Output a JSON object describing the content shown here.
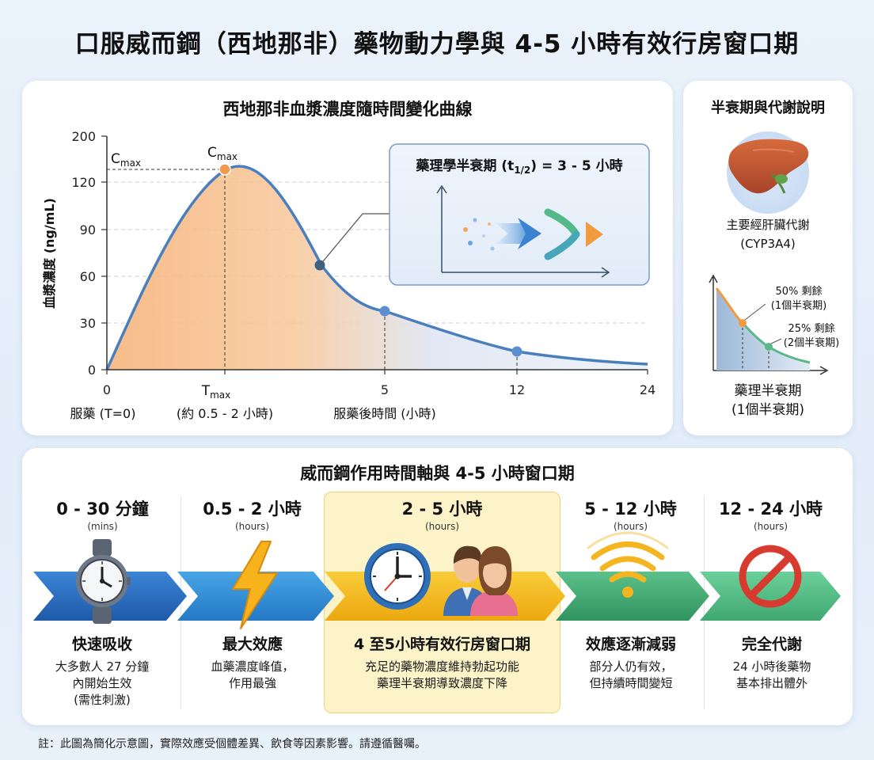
{
  "title": "口服威而鋼（西地那非）藥物動力學與 4-5 小時有效行房窗口期",
  "chart_card": {
    "title": "西地那非血漿濃度隨時間變化曲線",
    "inset_label": "藥理學半衰期 (t1/2) = 3 - 5 小時",
    "inset_label_main": "藥理學半衰期 (t",
    "inset_label_sub": "1/2",
    "inset_label_tail": ") = 3 - 5 小時",
    "cmax_left": "C",
    "cmax_left_sub": "max",
    "cmax_peak": "C",
    "cmax_peak_sub": "max",
    "tmax": "T",
    "tmax_sub": "max",
    "tmax_note": "(約 0.5 - 2 小時)",
    "dose_label": "服藥 (T=0)",
    "x_axis_label": "服藥後時間 (小時)"
  },
  "chart_data": {
    "type": "area",
    "ylabel": "血漿濃度 (ng/mL)",
    "xlabel": "服藥後時間 (小時)",
    "y_ticks": [
      0,
      30,
      60,
      90,
      120,
      200
    ],
    "x_ticks": [
      "0",
      "Tmax",
      "5",
      "12",
      "24"
    ],
    "ylim": [
      0,
      200
    ],
    "grid": "dashed horizontal",
    "peak": {
      "x_label": "Tmax",
      "y": 128,
      "label": "Cmax"
    },
    "markers": [
      {
        "x": "between Tmax and 5",
        "y": 67
      },
      {
        "x": 5,
        "y": 38
      },
      {
        "x": 12,
        "y": 12
      }
    ],
    "curve_end_y": 4,
    "colors": {
      "curve": "#4a7fbf",
      "fill_peak": "#f6a96b",
      "fill_tail": "#c8d8ee",
      "peak_dot": "#f39a4a",
      "dot": "#4a7fbf"
    }
  },
  "side_card": {
    "title": "半衰期與代謝說明",
    "liver_label": "主要經肝臟代謝",
    "liver_enzyme": "(CYP3A4)",
    "decay_50": "50% 剩餘",
    "decay_50_note": "(1個半衰期)",
    "decay_25": "25% 剩餘",
    "decay_25_note": "(2個半衰期)",
    "footer_line1": "藥理半衰期",
    "footer_line2": "(1個半衰期)",
    "icon": "liver-icon"
  },
  "timeline": {
    "title": "威而鋼作用時間軸與 4-5 小時窗口期",
    "phases": [
      {
        "label": "0 - 30 分鐘",
        "unit": "(mins)",
        "name": "快速吸收",
        "desc1": "大多數人 27 分鐘",
        "desc2": "內開始生效",
        "desc3": "(需性刺激)",
        "icon": "watch-icon",
        "color": "#2f6fc0"
      },
      {
        "label": "0.5 - 2 小時",
        "unit": "(hours)",
        "name": "最大效應",
        "desc1": "血藥濃度峰值，",
        "desc2": "作用最強",
        "icon": "lightning-icon",
        "color": "#2f8fd8"
      },
      {
        "label": "2 - 5 小時",
        "unit": "(hours)",
        "name": "4 至5小時有效行房窗口期",
        "desc1": "充足的藥物濃度維持勃起功能",
        "desc2": "藥理半衰期導致濃度下降",
        "icon": "clock-couple-icon",
        "color": "#f4b81c"
      },
      {
        "label": "5 - 12 小時",
        "unit": "(hours)",
        "name": "效應逐漸減弱",
        "desc1": "部分人仍有效，",
        "desc2": "但持續時間變短",
        "icon": "signal-waves-icon",
        "color": "#3faa72"
      },
      {
        "label": "12 - 24 小時",
        "unit": "(hours)",
        "name": "完全代謝",
        "desc1": "24 小時後藥物",
        "desc2": "基本排出體外",
        "icon": "prohibited-icon",
        "color": "#4db87a"
      }
    ]
  },
  "note": "註：此圖為簡化示意圖，實際效應受個體差異、飲食等因素影響。請遵循醫囑。"
}
